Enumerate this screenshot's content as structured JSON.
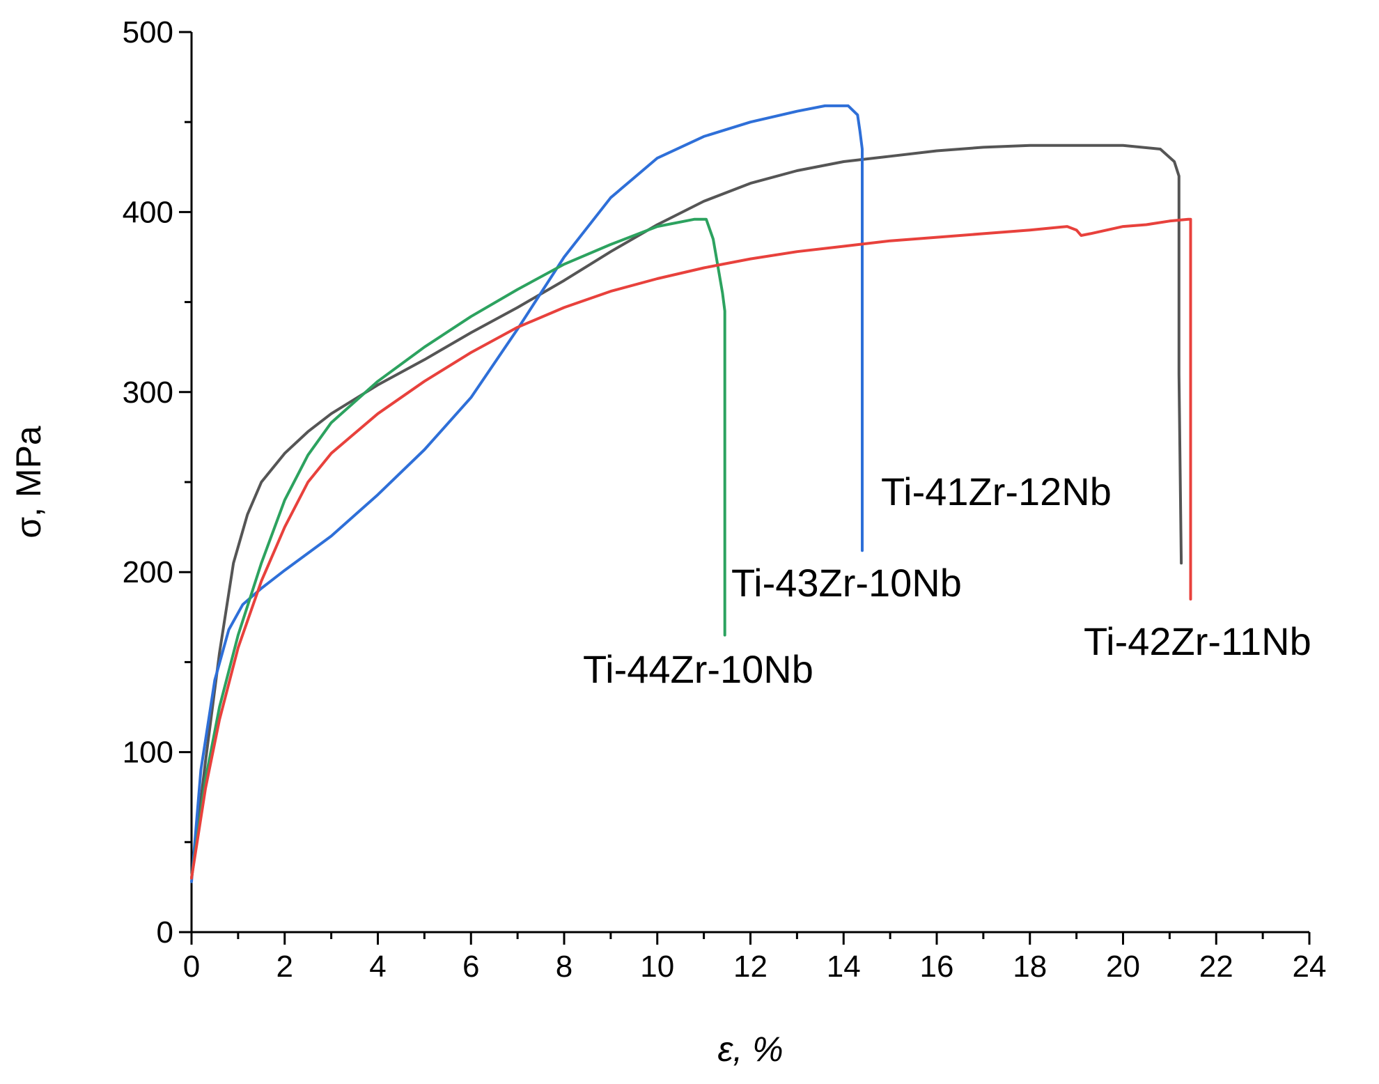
{
  "chart_data": {
    "type": "line",
    "title": "",
    "xlabel": "ε, %",
    "ylabel": "σ, MPa",
    "xlim": [
      0,
      24
    ],
    "ylim": [
      0,
      500
    ],
    "xticks": [
      0,
      2,
      4,
      6,
      8,
      10,
      12,
      14,
      16,
      18,
      20,
      22,
      24
    ],
    "yticks": [
      0,
      100,
      200,
      300,
      400,
      500
    ],
    "grid": false,
    "legend": "inline labels",
    "series": [
      {
        "name": "Ti-41Zr-12Nb",
        "color": "#555555",
        "label": "Ti-41Zr-12Nb",
        "points": [
          [
            0,
            30
          ],
          [
            0.3,
            95
          ],
          [
            0.6,
            155
          ],
          [
            0.9,
            205
          ],
          [
            1.2,
            232
          ],
          [
            1.5,
            250
          ],
          [
            2,
            266
          ],
          [
            2.5,
            278
          ],
          [
            3,
            288
          ],
          [
            4,
            304
          ],
          [
            5,
            318
          ],
          [
            6,
            333
          ],
          [
            7,
            347
          ],
          [
            8,
            362
          ],
          [
            9,
            378
          ],
          [
            10,
            393
          ],
          [
            11,
            406
          ],
          [
            12,
            416
          ],
          [
            13,
            423
          ],
          [
            14,
            428
          ],
          [
            15,
            431
          ],
          [
            16,
            434
          ],
          [
            17,
            436
          ],
          [
            18,
            437
          ],
          [
            19,
            437
          ],
          [
            20,
            437
          ],
          [
            20.8,
            435
          ],
          [
            21.1,
            428
          ],
          [
            21.2,
            420
          ],
          [
            21.2,
            310
          ],
          [
            21.25,
            205
          ]
        ]
      },
      {
        "name": "Ti-43Zr-10Nb",
        "color": "#2e6fd8",
        "label": "Ti-43Zr-10Nb",
        "points": [
          [
            0,
            28
          ],
          [
            0.2,
            90
          ],
          [
            0.5,
            140
          ],
          [
            0.8,
            168
          ],
          [
            1.1,
            182
          ],
          [
            1.5,
            191
          ],
          [
            2,
            201
          ],
          [
            3,
            220
          ],
          [
            4,
            243
          ],
          [
            5,
            268
          ],
          [
            6,
            297
          ],
          [
            7,
            335
          ],
          [
            8,
            375
          ],
          [
            9,
            408
          ],
          [
            10,
            430
          ],
          [
            11,
            442
          ],
          [
            12,
            450
          ],
          [
            13,
            456
          ],
          [
            13.6,
            459
          ],
          [
            14.1,
            459
          ],
          [
            14.3,
            454
          ],
          [
            14.35,
            445
          ],
          [
            14.4,
            435
          ],
          [
            14.4,
            300
          ],
          [
            14.4,
            212
          ]
        ]
      },
      {
        "name": "Ti-44Zr-10Nb",
        "color": "#2ca25f",
        "label": "Ti-44Zr-10Nb",
        "points": [
          [
            0,
            30
          ],
          [
            0.3,
            85
          ],
          [
            0.6,
            125
          ],
          [
            1,
            165
          ],
          [
            1.5,
            205
          ],
          [
            2,
            240
          ],
          [
            2.5,
            265
          ],
          [
            3,
            283
          ],
          [
            4,
            306
          ],
          [
            5,
            325
          ],
          [
            6,
            342
          ],
          [
            7,
            357
          ],
          [
            8,
            371
          ],
          [
            9,
            382
          ],
          [
            10,
            392
          ],
          [
            10.8,
            396
          ],
          [
            11.05,
            396
          ],
          [
            11.2,
            385
          ],
          [
            11.3,
            370
          ],
          [
            11.4,
            355
          ],
          [
            11.45,
            345
          ],
          [
            11.45,
            250
          ],
          [
            11.45,
            165
          ]
        ]
      },
      {
        "name": "Ti-42Zr-11Nb",
        "color": "#e8413c",
        "label": "Ti-42Zr-11Nb",
        "points": [
          [
            0,
            30
          ],
          [
            0.3,
            80
          ],
          [
            0.6,
            118
          ],
          [
            1,
            158
          ],
          [
            1.5,
            195
          ],
          [
            2,
            225
          ],
          [
            2.5,
            250
          ],
          [
            3,
            266
          ],
          [
            4,
            288
          ],
          [
            5,
            306
          ],
          [
            6,
            322
          ],
          [
            7,
            336
          ],
          [
            8,
            347
          ],
          [
            9,
            356
          ],
          [
            10,
            363
          ],
          [
            11,
            369
          ],
          [
            12,
            374
          ],
          [
            13,
            378
          ],
          [
            14,
            381
          ],
          [
            15,
            384
          ],
          [
            16,
            386
          ],
          [
            17,
            388
          ],
          [
            18,
            390
          ],
          [
            18.8,
            392
          ],
          [
            19,
            390
          ],
          [
            19.1,
            387
          ],
          [
            19.3,
            388
          ],
          [
            20,
            392
          ],
          [
            20.5,
            393
          ],
          [
            21,
            395
          ],
          [
            21.4,
            396
          ],
          [
            21.45,
            396
          ],
          [
            21.45,
            300
          ],
          [
            21.45,
            185
          ]
        ]
      }
    ]
  }
}
